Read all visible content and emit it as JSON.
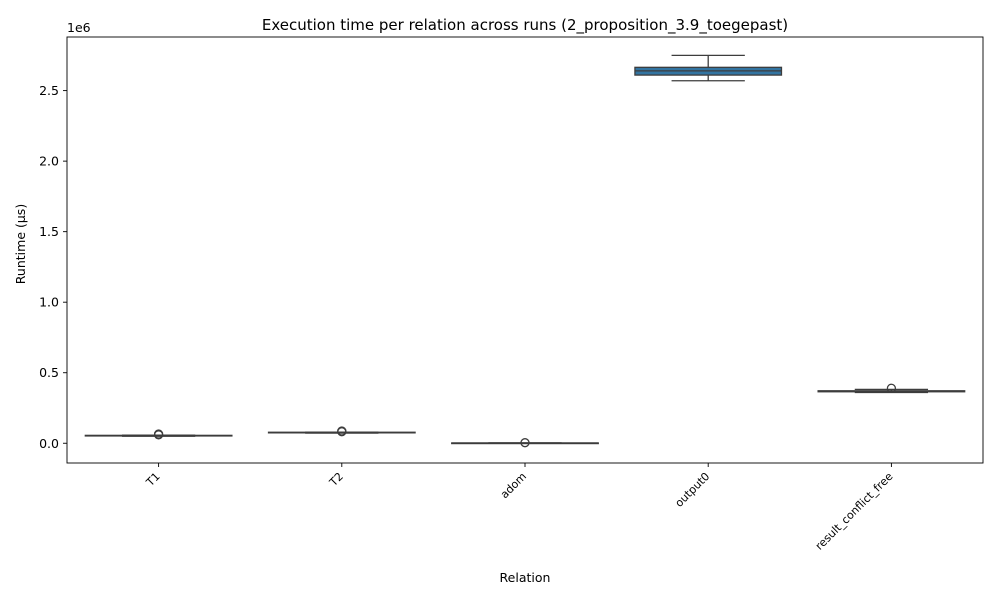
{
  "chart_data": {
    "type": "box",
    "title": "Execution time per relation across runs (2_proposition_3.9_toegepast)",
    "xlabel": "Relation",
    "ylabel": "Runtime (µs)",
    "y_offset_label": "1e6",
    "ylim": [
      -140000,
      2880000
    ],
    "yticks": [
      {
        "value": 0,
        "label": "0.0"
      },
      {
        "value": 500000,
        "label": "0.5"
      },
      {
        "value": 1000000,
        "label": "1.0"
      },
      {
        "value": 1500000,
        "label": "1.5"
      },
      {
        "value": 2000000,
        "label": "2.0"
      },
      {
        "value": 2500000,
        "label": "2.5"
      }
    ],
    "grid": false,
    "box_color": "#3274a1",
    "line_color": "#3d3d3d",
    "categories": [
      "T1",
      "T2",
      "adom",
      "output0",
      "result_conflict_free"
    ],
    "boxes": [
      {
        "category": "T1",
        "whislo": 50000,
        "q1": 52000,
        "med": 53000,
        "q3": 56000,
        "whishi": 57000,
        "fliers": [
          60000,
          65000
        ]
      },
      {
        "category": "T2",
        "whislo": 72000,
        "q1": 74000,
        "med": 75000,
        "q3": 78000,
        "whishi": 79000,
        "fliers": [
          82000,
          87000
        ]
      },
      {
        "category": "adom",
        "whislo": 500,
        "q1": 1000,
        "med": 1500,
        "q3": 2000,
        "whishi": 2500,
        "fliers": [
          4000
        ]
      },
      {
        "category": "output0",
        "whislo": 2570000,
        "q1": 2610000,
        "med": 2640000,
        "q3": 2665000,
        "whishi": 2750000,
        "fliers": []
      },
      {
        "category": "result_conflict_free",
        "whislo": 360000,
        "q1": 365000,
        "med": 368000,
        "q3": 372000,
        "whishi": 382000,
        "fliers": [
          390000
        ]
      }
    ]
  }
}
